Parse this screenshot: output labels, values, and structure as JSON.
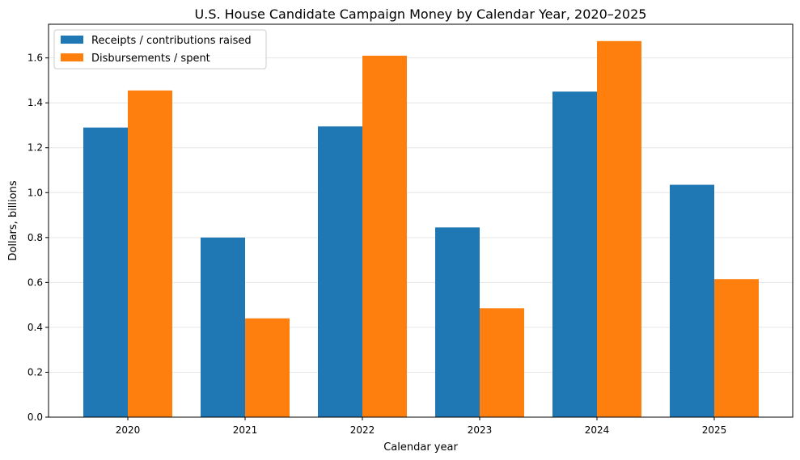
{
  "chart_data": {
    "type": "bar",
    "title": "U.S. House Candidate Campaign Money by Calendar Year, 2020–2025",
    "xlabel": "Calendar year",
    "ylabel": "Dollars, billions",
    "categories": [
      "2020",
      "2021",
      "2022",
      "2023",
      "2024",
      "2025"
    ],
    "series": [
      {
        "name": "Receipts / contributions raised",
        "color": "#1f77b4",
        "values": [
          1.29,
          0.8,
          1.295,
          0.845,
          1.45,
          1.035
        ]
      },
      {
        "name": "Disbursements / spent",
        "color": "#ff7f0e",
        "values": [
          1.455,
          0.44,
          1.61,
          0.485,
          1.675,
          0.615
        ]
      }
    ],
    "ylim": [
      0,
      1.75
    ],
    "yticks": [
      "0.0",
      "0.2",
      "0.4",
      "0.6",
      "0.8",
      "1.0",
      "1.2",
      "1.4",
      "1.6"
    ],
    "grid": "horizontal",
    "legend_position": "top-left"
  }
}
